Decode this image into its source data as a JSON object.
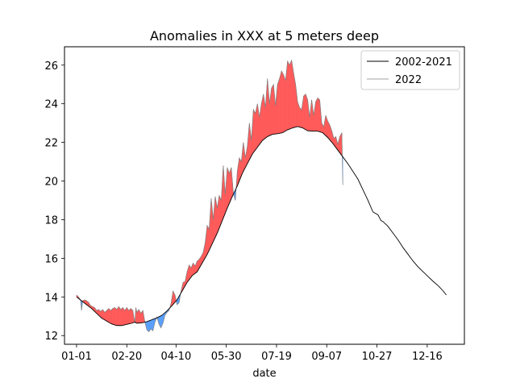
{
  "chart_data": {
    "type": "area",
    "title": "Anomalies in XXX at 5 meters deep",
    "xlabel": "date",
    "ylabel": "",
    "xlim": [
      -12,
      386
    ],
    "ylim": [
      11.55,
      26.95
    ],
    "x_ticks": [
      {
        "doy": 0,
        "label": "01-01"
      },
      {
        "doy": 50,
        "label": "02-20"
      },
      {
        "doy": 99,
        "label": "04-10"
      },
      {
        "doy": 149,
        "label": "05-30"
      },
      {
        "doy": 199,
        "label": "07-19"
      },
      {
        "doy": 249,
        "label": "09-07"
      },
      {
        "doy": 299,
        "label": "10-27"
      },
      {
        "doy": 349,
        "label": "12-16"
      }
    ],
    "y_ticks": [
      12,
      14,
      16,
      18,
      20,
      22,
      24,
      26
    ],
    "legend": {
      "position": "upper right",
      "entries": [
        {
          "name": "2002-2021",
          "color": "#000000"
        },
        {
          "name": "2022",
          "color": "#808080"
        }
      ]
    },
    "fill_colors": {
      "above": "#ff5a5a",
      "below": "#5aa0ff"
    },
    "series": [
      {
        "name": "2002-2021",
        "color": "#000000",
        "points": [
          [
            0,
            14.0
          ],
          [
            5,
            13.8
          ],
          [
            10,
            13.6
          ],
          [
            15,
            13.4
          ],
          [
            20,
            13.15
          ],
          [
            25,
            12.9
          ],
          [
            30,
            12.75
          ],
          [
            35,
            12.6
          ],
          [
            40,
            12.52
          ],
          [
            45,
            12.52
          ],
          [
            50,
            12.58
          ],
          [
            55,
            12.64
          ],
          [
            58,
            12.7
          ],
          [
            60,
            12.64
          ],
          [
            65,
            12.66
          ],
          [
            70,
            12.72
          ],
          [
            75,
            12.82
          ],
          [
            80,
            12.92
          ],
          [
            85,
            13.05
          ],
          [
            90,
            13.28
          ],
          [
            95,
            13.55
          ],
          [
            100,
            13.85
          ],
          [
            105,
            14.3
          ],
          [
            110,
            14.75
          ],
          [
            115,
            15.1
          ],
          [
            120,
            15.3
          ],
          [
            125,
            15.75
          ],
          [
            130,
            16.2
          ],
          [
            135,
            16.75
          ],
          [
            140,
            17.3
          ],
          [
            145,
            17.95
          ],
          [
            150,
            18.6
          ],
          [
            155,
            19.2
          ],
          [
            160,
            19.75
          ],
          [
            165,
            20.4
          ],
          [
            170,
            20.9
          ],
          [
            175,
            21.4
          ],
          [
            180,
            21.75
          ],
          [
            185,
            22.1
          ],
          [
            190,
            22.3
          ],
          [
            195,
            22.42
          ],
          [
            200,
            22.45
          ],
          [
            205,
            22.5
          ],
          [
            210,
            22.65
          ],
          [
            215,
            22.75
          ],
          [
            220,
            22.82
          ],
          [
            225,
            22.75
          ],
          [
            230,
            22.6
          ],
          [
            235,
            22.58
          ],
          [
            240,
            22.58
          ],
          [
            245,
            22.5
          ],
          [
            250,
            22.25
          ],
          [
            255,
            21.95
          ],
          [
            260,
            21.6
          ],
          [
            265,
            21.25
          ],
          [
            270,
            20.9
          ],
          [
            275,
            20.5
          ],
          [
            280,
            20.1
          ],
          [
            285,
            19.55
          ],
          [
            290,
            19.0
          ],
          [
            295,
            18.4
          ],
          [
            300,
            18.25
          ],
          [
            303,
            17.95
          ],
          [
            305,
            17.9
          ],
          [
            310,
            17.65
          ],
          [
            315,
            17.3
          ],
          [
            320,
            16.95
          ],
          [
            325,
            16.55
          ],
          [
            330,
            16.2
          ],
          [
            335,
            15.85
          ],
          [
            340,
            15.55
          ],
          [
            345,
            15.3
          ],
          [
            350,
            15.05
          ],
          [
            355,
            14.8
          ],
          [
            360,
            14.58
          ],
          [
            365,
            14.3
          ],
          [
            368,
            14.1
          ]
        ]
      },
      {
        "name": "2022",
        "color": "#808080",
        "points": [
          [
            0,
            14.1
          ],
          [
            2,
            14.0
          ],
          [
            4,
            13.85
          ],
          [
            5,
            13.3
          ],
          [
            6,
            13.8
          ],
          [
            8,
            13.85
          ],
          [
            10,
            13.8
          ],
          [
            12,
            13.72
          ],
          [
            14,
            13.55
          ],
          [
            16,
            13.5
          ],
          [
            18,
            13.45
          ],
          [
            20,
            13.3
          ],
          [
            22,
            13.35
          ],
          [
            24,
            13.25
          ],
          [
            26,
            13.35
          ],
          [
            28,
            13.2
          ],
          [
            30,
            13.3
          ],
          [
            32,
            13.4
          ],
          [
            34,
            13.3
          ],
          [
            36,
            13.4
          ],
          [
            38,
            13.45
          ],
          [
            40,
            13.35
          ],
          [
            42,
            13.5
          ],
          [
            44,
            13.35
          ],
          [
            46,
            13.45
          ],
          [
            48,
            13.3
          ],
          [
            50,
            13.45
          ],
          [
            52,
            13.3
          ],
          [
            54,
            13.4
          ],
          [
            56,
            13.3
          ],
          [
            58,
            12.65
          ],
          [
            59,
            13.45
          ],
          [
            60,
            13.2
          ],
          [
            62,
            13.35
          ],
          [
            64,
            13.15
          ],
          [
            66,
            13.3
          ],
          [
            68,
            12.7
          ],
          [
            70,
            12.3
          ],
          [
            72,
            12.2
          ],
          [
            74,
            12.35
          ],
          [
            76,
            12.25
          ],
          [
            78,
            12.7
          ],
          [
            80,
            12.95
          ],
          [
            82,
            12.6
          ],
          [
            84,
            12.4
          ],
          [
            86,
            12.65
          ],
          [
            88,
            13.05
          ],
          [
            90,
            13.2
          ],
          [
            92,
            13.3
          ],
          [
            94,
            13.65
          ],
          [
            96,
            14.3
          ],
          [
            98,
            14.1
          ],
          [
            100,
            13.6
          ],
          [
            102,
            13.7
          ],
          [
            104,
            14.3
          ],
          [
            106,
            14.75
          ],
          [
            108,
            14.8
          ],
          [
            110,
            15.3
          ],
          [
            112,
            15.65
          ],
          [
            114,
            15.5
          ],
          [
            116,
            15.75
          ],
          [
            118,
            15.6
          ],
          [
            120,
            15.85
          ],
          [
            122,
            15.95
          ],
          [
            124,
            16.1
          ],
          [
            126,
            16.3
          ],
          [
            128,
            16.8
          ],
          [
            130,
            17.7
          ],
          [
            132,
            17.5
          ],
          [
            134,
            19.1
          ],
          [
            136,
            18.0
          ],
          [
            138,
            19.2
          ],
          [
            140,
            18.6
          ],
          [
            142,
            19.25
          ],
          [
            144,
            19.0
          ],
          [
            146,
            20.8
          ],
          [
            148,
            19.3
          ],
          [
            150,
            20.7
          ],
          [
            152,
            20.4
          ],
          [
            154,
            20.7
          ],
          [
            156,
            19.4
          ],
          [
            158,
            19.0
          ],
          [
            160,
            20.5
          ],
          [
            162,
            21.2
          ],
          [
            164,
            21.0
          ],
          [
            166,
            22.0
          ],
          [
            168,
            21.2
          ],
          [
            170,
            21.8
          ],
          [
            172,
            23.0
          ],
          [
            174,
            22.1
          ],
          [
            176,
            23.7
          ],
          [
            178,
            23.5
          ],
          [
            180,
            24.0
          ],
          [
            182,
            23.3
          ],
          [
            184,
            24.0
          ],
          [
            186,
            24.5
          ],
          [
            188,
            23.8
          ],
          [
            190,
            25.3
          ],
          [
            192,
            24.0
          ],
          [
            194,
            24.8
          ],
          [
            196,
            25.0
          ],
          [
            198,
            23.9
          ],
          [
            200,
            25.0
          ],
          [
            202,
            25.3
          ],
          [
            204,
            25.7
          ],
          [
            206,
            25.5
          ],
          [
            208,
            25.2
          ],
          [
            210,
            26.2
          ],
          [
            212,
            26.0
          ],
          [
            214,
            26.25
          ],
          [
            216,
            25.6
          ],
          [
            218,
            25.0
          ],
          [
            220,
            24.1
          ],
          [
            222,
            23.8
          ],
          [
            224,
            23.7
          ],
          [
            226,
            24.4
          ],
          [
            228,
            24.5
          ],
          [
            230,
            24.2
          ],
          [
            232,
            23.3
          ],
          [
            234,
            24.2
          ],
          [
            236,
            23.4
          ],
          [
            238,
            24.1
          ],
          [
            240,
            24.3
          ],
          [
            242,
            24.2
          ],
          [
            244,
            23.0
          ],
          [
            246,
            22.8
          ],
          [
            248,
            23.4
          ],
          [
            250,
            23.1
          ],
          [
            252,
            22.9
          ],
          [
            254,
            22.6
          ],
          [
            256,
            22.2
          ],
          [
            258,
            22.3
          ],
          [
            260,
            21.9
          ],
          [
            262,
            22.3
          ],
          [
            264,
            22.5
          ],
          [
            265,
            19.8
          ]
        ]
      }
    ]
  }
}
